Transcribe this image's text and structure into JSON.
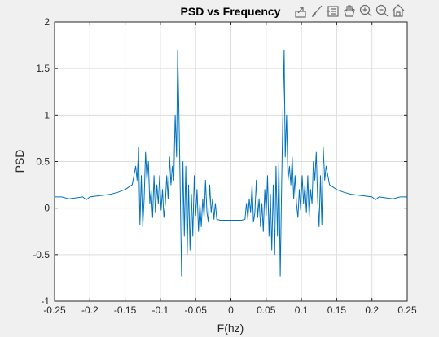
{
  "chart_data": {
    "type": "line",
    "title": "PSD vs Frequency",
    "xlabel": "F(hz)",
    "ylabel": "PSD",
    "xlim": [
      -0.25,
      0.25
    ],
    "ylim": [
      -1,
      2
    ],
    "xticks": [
      "-0.25",
      "-0.2",
      "-0.15",
      "-0.1",
      "-0.05",
      "0",
      "0.05",
      "0.1",
      "0.15",
      "0.2",
      "0.25"
    ],
    "yticks": [
      "-1",
      "-0.5",
      "0",
      "0.5",
      "1",
      "1.5",
      "2"
    ],
    "grid": true,
    "line_color": "#0072bd",
    "series": [
      {
        "x": [
          0.0,
          0.005,
          0.01,
          0.015,
          0.02,
          0.022,
          0.024,
          0.026,
          0.028,
          0.03,
          0.032,
          0.034,
          0.036,
          0.038,
          0.04,
          0.042,
          0.044,
          0.046,
          0.048,
          0.05,
          0.052,
          0.054,
          0.056,
          0.058,
          0.06,
          0.062,
          0.064,
          0.066,
          0.068,
          0.07,
          0.072,
          0.074,
          0.0755,
          0.077,
          0.079,
          0.081,
          0.083,
          0.085,
          0.087,
          0.089,
          0.091,
          0.093,
          0.095,
          0.097,
          0.099,
          0.101,
          0.103,
          0.105,
          0.107,
          0.109,
          0.111,
          0.113,
          0.115,
          0.117,
          0.119,
          0.121,
          0.123,
          0.125,
          0.127,
          0.129,
          0.131,
          0.133,
          0.135,
          0.14,
          0.15,
          0.16,
          0.17,
          0.18,
          0.19,
          0.2,
          0.205,
          0.21,
          0.22,
          0.23,
          0.24,
          0.25
        ],
        "y": [
          -0.13,
          -0.13,
          -0.13,
          -0.13,
          -0.12,
          0.05,
          -0.12,
          0.1,
          -0.05,
          0.25,
          -0.15,
          -0.05,
          0.3,
          -0.1,
          0.1,
          -0.2,
          0.05,
          -0.25,
          0.2,
          -0.08,
          0.35,
          -0.3,
          0.15,
          -0.45,
          0.25,
          -0.5,
          0.45,
          -0.3,
          0.5,
          -0.73,
          0.3,
          1.15,
          1.7,
          0.55,
          1.0,
          0.3,
          0.45,
          0.25,
          0.55,
          0.1,
          0.35,
          0.05,
          -0.1,
          0.2,
          -0.02,
          0.35,
          0.05,
          0.25,
          -0.05,
          0.35,
          -0.1,
          0.2,
          0.05,
          0.5,
          0.3,
          0.6,
          0.1,
          -0.2,
          0.35,
          -0.18,
          0.65,
          0.3,
          0.45,
          0.25,
          0.2,
          0.17,
          0.15,
          0.14,
          0.13,
          0.12,
          0.09,
          0.12,
          0.11,
          0.1,
          0.12,
          0.12
        ]
      }
    ]
  },
  "toolbar": {
    "icons": [
      "export-icon",
      "brush-icon",
      "data-tip-icon",
      "pan-icon",
      "zoom-in-icon",
      "zoom-out-icon",
      "home-icon"
    ]
  }
}
